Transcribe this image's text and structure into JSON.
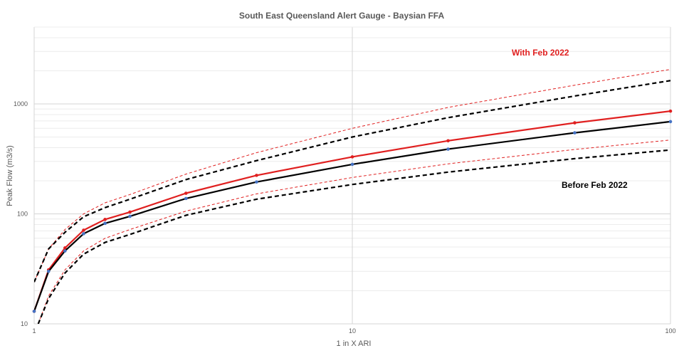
{
  "chart_data": {
    "type": "line",
    "title": "South East Queensland Alert Gauge - Baysian FFA",
    "xlabel": "1 in X ARI",
    "ylabel": "Peak Flow (m3/s)",
    "x_scale": "log",
    "y_scale": "log",
    "xlim": [
      1,
      100
    ],
    "ylim": [
      10,
      5000
    ],
    "x_ticks": [
      "1",
      "10",
      "100"
    ],
    "y_ticks": [
      "10",
      "100",
      "1000"
    ],
    "grid": true,
    "legend": "none",
    "annotations": [
      {
        "text": "With Feb 2022",
        "color": "#e02020"
      },
      {
        "text": "Before Feb 2022",
        "color": "#000000"
      }
    ],
    "series": [
      {
        "color": "#e02020",
        "style": "solid",
        "markers": true,
        "x": [
          1.0,
          1.11,
          1.25,
          1.43,
          1.67,
          2.0,
          3.0,
          5.0,
          10.0,
          20.0,
          50.0,
          100.0
        ],
        "y": [
          13,
          31,
          49,
          71,
          89,
          104,
          154,
          224,
          330,
          462,
          673,
          860
        ]
      },
      {
        "color": "#000000",
        "style": "solid",
        "markers": true,
        "x": [
          1.0,
          1.11,
          1.25,
          1.43,
          1.67,
          2.0,
          3.0,
          5.0,
          10.0,
          20.0,
          50.0,
          100.0
        ],
        "y": [
          13,
          30,
          46,
          66,
          82,
          95,
          138,
          195,
          282,
          388,
          546,
          690
        ]
      },
      {
        "color": "#e02020",
        "style": "thin-dashed",
        "markers": false,
        "x": [
          1.0,
          1.11,
          1.25,
          1.43,
          1.67,
          2.0,
          3.0,
          5.0,
          10.0,
          20.0,
          50.0,
          100.0
        ],
        "y": [
          24,
          48,
          72,
          100,
          126,
          150,
          230,
          360,
          600,
          930,
          1480,
          2060
        ]
      },
      {
        "color": "#000000",
        "style": "dashed",
        "markers": false,
        "x": [
          1.0,
          1.11,
          1.25,
          1.43,
          1.67,
          2.0,
          3.0,
          5.0,
          10.0,
          20.0,
          50.0,
          100.0
        ],
        "y": [
          24,
          48,
          68,
          94,
          114,
          136,
          205,
          305,
          500,
          750,
          1180,
          1630
        ]
      },
      {
        "color": "#e02020",
        "style": "thin-dashed",
        "markers": false,
        "x": [
          1.03,
          1.11,
          1.25,
          1.43,
          1.67,
          2.0,
          3.0,
          5.0,
          10.0,
          20.0,
          50.0,
          100.0
        ],
        "y": [
          10,
          18,
          31,
          46,
          60,
          72,
          106,
          152,
          214,
          285,
          385,
          470
        ]
      },
      {
        "color": "#000000",
        "style": "dashed",
        "markers": false,
        "x": [
          1.03,
          1.11,
          1.25,
          1.43,
          1.67,
          2.0,
          3.0,
          5.0,
          10.0,
          20.0,
          50.0,
          100.0
        ],
        "y": [
          10,
          17,
          29,
          43,
          55,
          65,
          97,
          136,
          185,
          240,
          318,
          381
        ]
      }
    ]
  }
}
